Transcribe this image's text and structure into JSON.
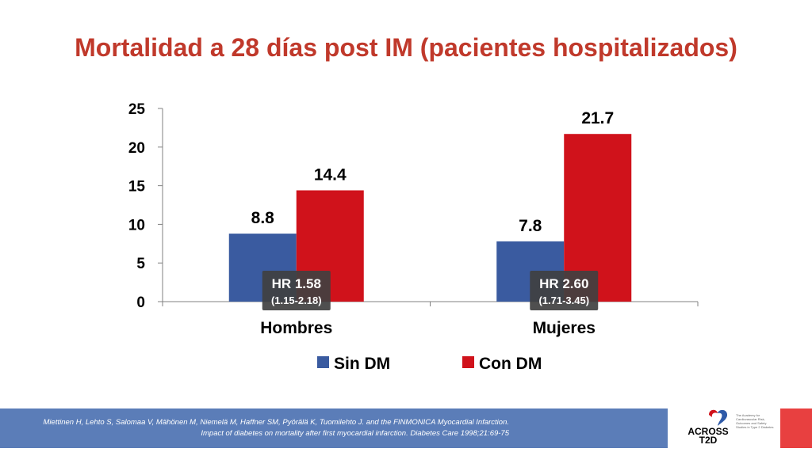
{
  "title": "Mortalidad a 28 días post IM (pacientes hospitalizados)",
  "colors": {
    "title": "#C0392B",
    "sin_dm": "#3A5BA0",
    "con_dm": "#D0121B",
    "footer_band": "#5B7DB8",
    "red_block": "#E84040",
    "logo_red": "#D0121B",
    "logo_blue": "#2E5AA8"
  },
  "chart_data": {
    "type": "bar",
    "categories": [
      "Hombres",
      "Mujeres"
    ],
    "series": [
      {
        "name": "Sin DM",
        "values": [
          8.8,
          7.8
        ]
      },
      {
        "name": "Con DM",
        "values": [
          14.4,
          21.7
        ]
      }
    ],
    "data_labels": [
      [
        "8.8",
        "7.8"
      ],
      [
        "14.4",
        "21.7"
      ]
    ],
    "ylim": [
      0,
      25
    ],
    "yticks": [
      "0",
      "5",
      "10",
      "15",
      "20",
      "25"
    ],
    "xlabel": "",
    "ylabel": "",
    "grid": false,
    "legend_position": "bottom",
    "annotations": [
      {
        "category": "Hombres",
        "hr": "HR 1.58",
        "ci": "(1.15-2.18)"
      },
      {
        "category": "Mujeres",
        "hr": "HR 2.60",
        "ci": "(1.71-3.45)"
      }
    ]
  },
  "citation": {
    "line1": "Miettinen H, Lehto S, Salomaa V, Mähönen M, Niemelä M, Haffner SM, Pyörälä K, Tuomilehto J. and the FINMONICA Myocardial Infarction.",
    "line2": "Impact of diabetes on mortality after first myocardial infarction. Diabetes Care 1998;21:69-75"
  },
  "logo": {
    "word1": "ACROSS",
    "word2": "T2D",
    "tagline": "The Academy for Cardiovascular Risk, Outcomes and Safety Studies in Type 2 Diabetes",
    "icon": "heart-logo-icon"
  }
}
